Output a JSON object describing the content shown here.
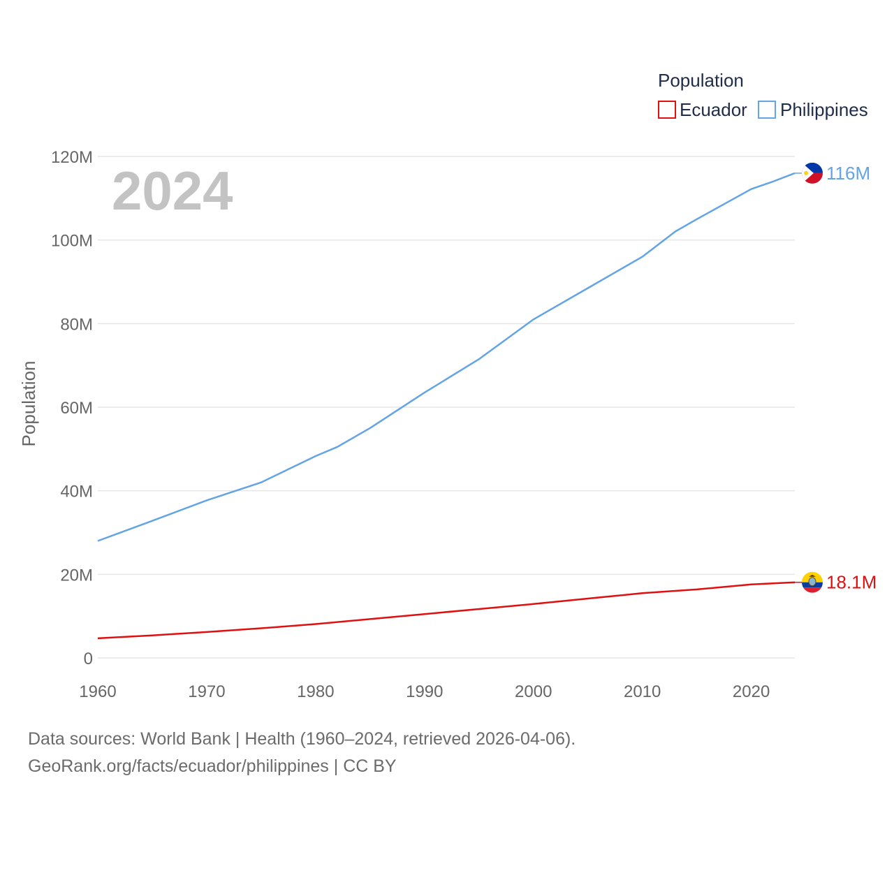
{
  "chart_data": {
    "type": "line",
    "title": "",
    "xlabel": "",
    "ylabel": "Population",
    "year_display": "2024",
    "xlim": [
      1960,
      2024
    ],
    "ylim": [
      0,
      120000000
    ],
    "x_ticks": [
      1960,
      1970,
      1980,
      1990,
      2000,
      2010,
      2020
    ],
    "y_ticks": [
      0,
      20000000,
      40000000,
      60000000,
      80000000,
      100000000,
      120000000
    ],
    "y_tick_labels": [
      "0",
      "20M",
      "40M",
      "60M",
      "80M",
      "100M",
      "120M"
    ],
    "grid": true,
    "legend": {
      "title": "Population",
      "position": "top-right",
      "entries": [
        "Ecuador",
        "Philippines"
      ]
    },
    "series": [
      {
        "name": "Ecuador",
        "color": "#e01010",
        "end_label": "18.1M",
        "flag_icon": "ecuador-flag-icon",
        "x": [
          1960,
          1965,
          1970,
          1975,
          1980,
          1985,
          1990,
          1995,
          2000,
          2005,
          2010,
          2015,
          2020,
          2024
        ],
        "values": [
          4700000,
          5400000,
          6200000,
          7100000,
          8100000,
          9300000,
          10500000,
          11700000,
          12900000,
          14200000,
          15500000,
          16400000,
          17600000,
          18100000
        ]
      },
      {
        "name": "Philippines",
        "color": "#63a4e6",
        "end_label": "116M",
        "flag_icon": "philippines-flag-icon",
        "x": [
          1960,
          1965,
          1970,
          1975,
          1980,
          1982,
          1985,
          1990,
          1995,
          2000,
          2005,
          2010,
          2013,
          2015,
          2020,
          2022,
          2024
        ],
        "values": [
          28000000,
          32800000,
          37700000,
          42000000,
          48300000,
          50500000,
          55000000,
          63500000,
          71500000,
          81000000,
          88500000,
          96000000,
          102000000,
          105000000,
          112200000,
          114000000,
          116000000
        ]
      }
    ]
  },
  "footer": {
    "line1": "Data sources: World Bank | Health (1960–2024, retrieved 2026-04-06).",
    "line2": "GeoRank.org/facts/ecuador/philippines | CC BY"
  }
}
